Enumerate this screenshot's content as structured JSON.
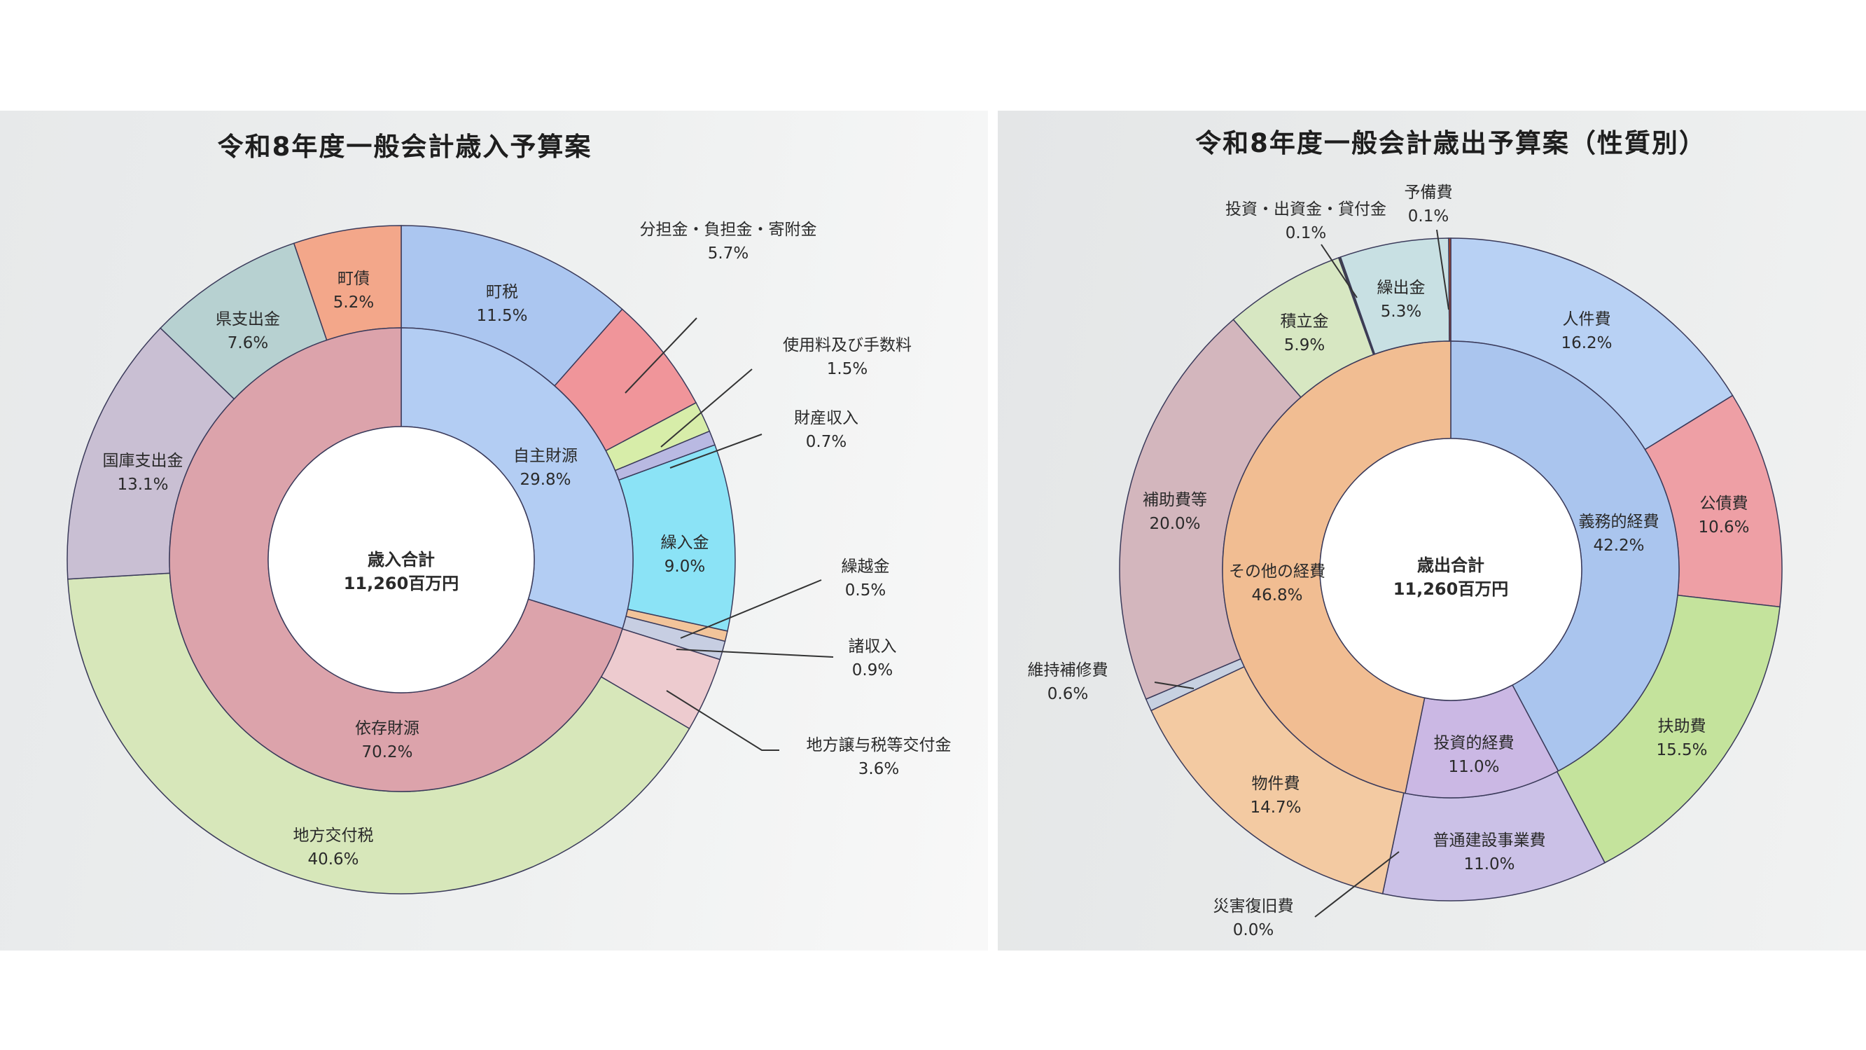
{
  "chart_data": [
    {
      "type": "pie",
      "variant": "double-donut",
      "title": "令和8年度一般会計歳入予算案",
      "center_label": "歳入合計",
      "center_value": "11,260百万円",
      "unit": "%",
      "inner_ring": [
        {
          "name": "自主財源",
          "value": 29.8,
          "color": "#b3cdf3"
        },
        {
          "name": "依存財源",
          "value": 70.2,
          "color": "#dca3ab"
        }
      ],
      "outer_ring": [
        {
          "name": "町税",
          "value": 11.5,
          "color": "#abc6f0"
        },
        {
          "name": "分担金・負担金・寄附金",
          "value": 5.7,
          "color": "#f0959a"
        },
        {
          "name": "使用料及び手数料",
          "value": 1.5,
          "color": "#d7eda9"
        },
        {
          "name": "財産収入",
          "value": 0.7,
          "color": "#b9b9e2"
        },
        {
          "name": "繰入金",
          "value": 9.0,
          "color": "#8be3f6"
        },
        {
          "name": "繰越金",
          "value": 0.5,
          "color": "#f2c49a"
        },
        {
          "name": "諸収入",
          "value": 0.9,
          "color": "#c7cee2"
        },
        {
          "name": "地方譲与税等交付金",
          "value": 3.6,
          "color": "#edcbcf"
        },
        {
          "name": "地方交付税",
          "value": 40.6,
          "color": "#d7e7ba"
        },
        {
          "name": "国庫支出金",
          "value": 13.1,
          "color": "#c9bfd3"
        },
        {
          "name": "県支出金",
          "value": 7.6,
          "color": "#b7d1d1"
        },
        {
          "name": "町債",
          "value": 5.2,
          "color": "#f3a78a"
        }
      ]
    },
    {
      "type": "pie",
      "variant": "double-donut",
      "title": "令和8年度一般会計歳出予算案（性質別）",
      "center_label": "歳出合計",
      "center_value": "11,260百万円",
      "unit": "%",
      "inner_ring": [
        {
          "name": "義務的経費",
          "value": 42.2,
          "color": "#aac5ee"
        },
        {
          "name": "投資的経費",
          "value": 11.0,
          "color": "#cbb8e4"
        },
        {
          "name": "その他の経費",
          "value": 46.8,
          "color": "#f1bd92"
        }
      ],
      "outer_ring": [
        {
          "name": "人件費",
          "value": 16.2,
          "color": "#b8d1f4"
        },
        {
          "name": "公債費",
          "value": 10.6,
          "color": "#ee9fa5"
        },
        {
          "name": "扶助費",
          "value": 15.5,
          "color": "#c4e39c"
        },
        {
          "name": "普通建設事業費",
          "value": 11.0,
          "color": "#cbc1e7"
        },
        {
          "name": "災害復旧費",
          "value": 0.0,
          "color": "#e8a060"
        },
        {
          "name": "物件費",
          "value": 14.7,
          "color": "#f3caa2"
        },
        {
          "name": "維持補修費",
          "value": 0.6,
          "color": "#c7d1e1"
        },
        {
          "name": "補助費等",
          "value": 20.0,
          "color": "#d3b6bd"
        },
        {
          "name": "積立金",
          "value": 5.9,
          "color": "#d7e7c2"
        },
        {
          "name": "投資・出資金・貸付金",
          "value": 0.1,
          "color": "#444444"
        },
        {
          "name": "繰出金",
          "value": 5.3,
          "color": "#c8e0e3"
        },
        {
          "name": "予備費",
          "value": 0.1,
          "color": "#c0451f"
        }
      ]
    }
  ]
}
